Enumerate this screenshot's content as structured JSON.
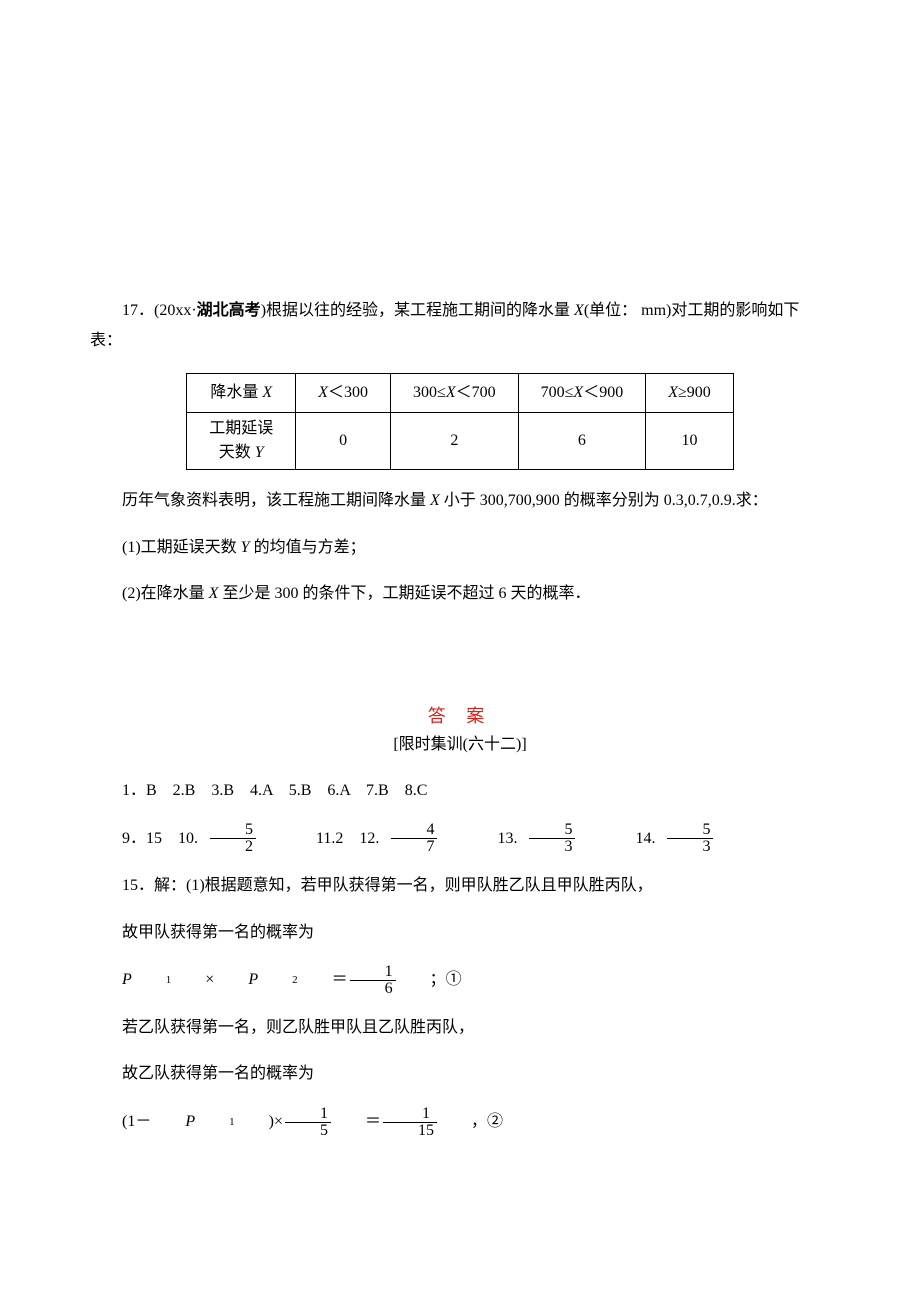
{
  "q17": {
    "prefix": "17．(20xx·",
    "source_bold": "湖北高考",
    "intro_after": ")根据以往的经验，某工程施工期间的降水量 ",
    "var_x": "X",
    "intro_unit": "(单位：  mm)对工期的影响如下表：",
    "table": {
      "r1c1_a": "降水量 ",
      "r1c1_b": "X",
      "r1c2_a": "X",
      "r1c2_b": "＜300",
      "r1c3_a": "300≤",
      "r1c3_b": "X",
      "r1c3_c": "＜700",
      "r1c4_a": "700≤",
      "r1c4_b": "X",
      "r1c4_c": "＜900",
      "r1c5_a": "X",
      "r1c5_b": "≥900",
      "r2c1_l1": "工期延误",
      "r2c1_l2a": "天数 ",
      "r2c1_l2b": "Y",
      "r2c2": "0",
      "r2c3": "2",
      "r2c4": "6",
      "r2c5": "10"
    },
    "para2_a": "历年气象资料表明，该工程施工期间降水量 ",
    "para2_b": "X",
    "para2_c": " 小于 300,700,900 的概率分别为 0.3,0.7,0.9.求：",
    "q1_a": "(1)工期延误天数 ",
    "q1_b": "Y",
    "q1_c": " 的均值与方差；",
    "q2_a": "(2)在降水量 ",
    "q2_b": "X",
    "q2_c": " 至少是 300 的条件下，工期延误不超过 6 天的概率．"
  },
  "answers": {
    "title": "答 案",
    "subtitle": "[限时集训(六十二)]",
    "line1": "1．B　2.B　3.B　4.A　5.B　6.A　7.B　8.C",
    "l2_lead": "9．15　10.",
    "f10_n": "5",
    "f10_d": "2",
    "l2_mid1": "　11.2　12.",
    "f12_n": "4",
    "f12_d": "7",
    "l2_mid2": "　13.",
    "f13_n": "5",
    "f13_d": "3",
    "l2_mid3": "　14.",
    "f14_n": "5",
    "f14_d": "3",
    "q15_intro": "15．解：(1)根据题意知，若甲队获得第一名，则甲队胜乙队且甲队胜丙队，",
    "q15_l2": "故甲队获得第一名的概率为",
    "eq1_lhs_a": "P",
    "eq1_lhs_b": "1",
    "eq1_lhs_c": "×",
    "eq1_lhs_d": "P",
    "eq1_lhs_e": "2",
    "eq1_lhs_f": "＝",
    "eq1_num": "1",
    "eq1_den": "6",
    "eq1_tail": "；①",
    "q15_l4": "若乙队获得第一名，则乙队胜甲队且乙队胜丙队，",
    "q15_l5": "故乙队获得第一名的概率为",
    "eq2_a": "(1－",
    "eq2_b": "P",
    "eq2_c": "1",
    "eq2_d": ")×",
    "eq2_f1n": "1",
    "eq2_f1d": "5",
    "eq2_eq": "＝",
    "eq2_f2n": "1",
    "eq2_f2d": "15",
    "eq2_tail": "，②"
  },
  "colors": {
    "answer_title": "#d6231c"
  }
}
